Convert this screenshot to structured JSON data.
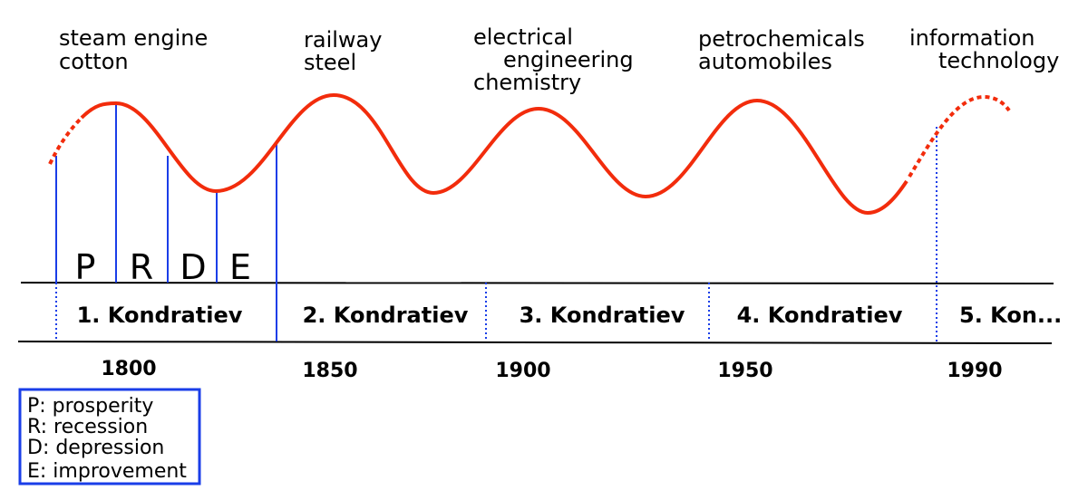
{
  "innovations": [
    [
      "steam engine",
      "cotton"
    ],
    [
      "railway",
      "steel"
    ],
    [
      "electrical",
      "engineering",
      "chemistry"
    ],
    [
      "petrochemicals",
      "automobiles"
    ],
    [
      "information",
      "technology"
    ]
  ],
  "phases": [
    "P",
    "R",
    "D",
    "E"
  ],
  "waves": [
    "1. Kondratiev",
    "2. Kondratiev",
    "3. Kondratiev",
    "4. Kondratiev",
    "5. Kon..."
  ],
  "years": [
    "1800",
    "1850",
    "1900",
    "1950",
    "1990"
  ],
  "legend": [
    "P: prosperity",
    "R: recession",
    "D: depression",
    "E: improvement"
  ]
}
